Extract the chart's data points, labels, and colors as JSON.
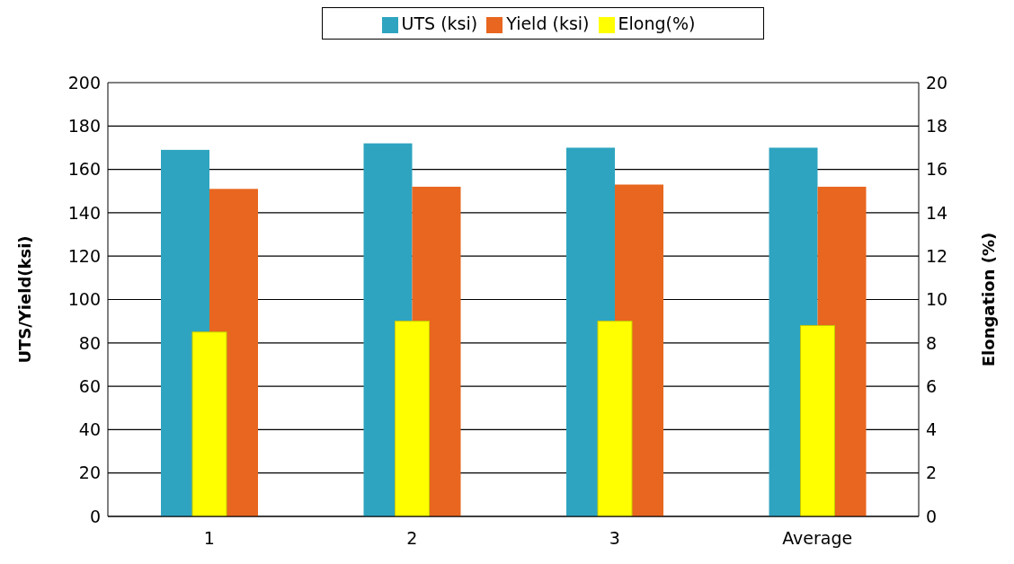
{
  "chart_data": {
    "type": "bar",
    "categories": [
      "1",
      "2",
      "3",
      "Average"
    ],
    "series": [
      {
        "name": "UTS (ksi)",
        "color": "#2ea4c0",
        "values": [
          169,
          172,
          170,
          170
        ]
      },
      {
        "name": "Yield (ksi)",
        "color": "#e8661f",
        "values": [
          151,
          152,
          153,
          152
        ]
      },
      {
        "name": "Elong(%)",
        "color": "#ffff00",
        "values": [
          8.5,
          9.0,
          9.0,
          8.8
        ],
        "axis": "y2"
      }
    ],
    "ylabel": "UTS/Yield(ksi)",
    "y2label": "Elongation (%)",
    "ylim": [
      0,
      200
    ],
    "yticks": [
      0,
      20,
      40,
      60,
      80,
      100,
      120,
      140,
      160,
      180,
      200
    ],
    "y2lim": [
      0,
      20
    ],
    "y2ticks": [
      0,
      2,
      4,
      6,
      8,
      10,
      12,
      14,
      16,
      18,
      20
    ],
    "grid": "y",
    "legend": "top"
  }
}
